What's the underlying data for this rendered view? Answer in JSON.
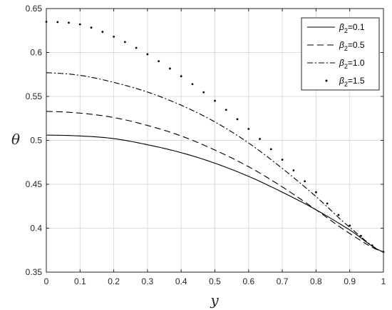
{
  "chart_data": {
    "type": "line",
    "xlabel": "y",
    "ylabel": "θ",
    "xlim": [
      0,
      1
    ],
    "ylim": [
      0.35,
      0.65
    ],
    "xticks": [
      0,
      0.1,
      0.2,
      0.3,
      0.4,
      0.5,
      0.6,
      0.7,
      0.8,
      0.9,
      1
    ],
    "xtick_labels": [
      "0",
      "0.1",
      "0.2",
      "0.3",
      "0.4",
      "0.5",
      "0.6",
      "0.7",
      "0.8",
      "0.9",
      "1"
    ],
    "yticks": [
      0.35,
      0.4,
      0.45,
      0.5,
      0.55,
      0.6,
      0.65
    ],
    "ytick_labels": [
      "0.35",
      "0.4",
      "0.45",
      "0.5",
      "0.55",
      "0.6",
      "0.65"
    ],
    "grid": true,
    "legend_position": "top-right",
    "x": [
      0,
      0.1,
      0.2,
      0.3,
      0.4,
      0.5,
      0.6,
      0.7,
      0.8,
      0.9,
      1.0
    ],
    "series": [
      {
        "name": "β2=0.1",
        "legend_symbol": "β",
        "legend_sub": "2",
        "legend_value": "=0.1",
        "style": "solid",
        "color": "#000000",
        "values": [
          0.506,
          0.505,
          0.502,
          0.495,
          0.486,
          0.474,
          0.459,
          0.441,
          0.421,
          0.398,
          0.373
        ]
      },
      {
        "name": "β2=0.5",
        "legend_symbol": "β",
        "legend_sub": "2",
        "legend_value": "=0.5",
        "style": "dashed",
        "color": "#000000",
        "values": [
          0.533,
          0.531,
          0.526,
          0.517,
          0.505,
          0.489,
          0.47,
          0.447,
          0.421,
          0.394,
          0.373
        ]
      },
      {
        "name": "β2=1.0",
        "legend_symbol": "β",
        "legend_sub": "2",
        "legend_value": "=1.0",
        "style": "dashdot",
        "color": "#000000",
        "values": [
          0.577,
          0.574,
          0.566,
          0.555,
          0.54,
          0.521,
          0.497,
          0.468,
          0.436,
          0.401,
          0.373
        ]
      },
      {
        "name": "β2=1.5",
        "legend_symbol": "β",
        "legend_sub": "2",
        "legend_value": "=1.5",
        "style": "dotted",
        "color": "#000000",
        "values": [
          0.635,
          0.632,
          0.618,
          0.598,
          0.573,
          0.545,
          0.513,
          0.478,
          0.441,
          0.403,
          0.373
        ]
      }
    ]
  }
}
